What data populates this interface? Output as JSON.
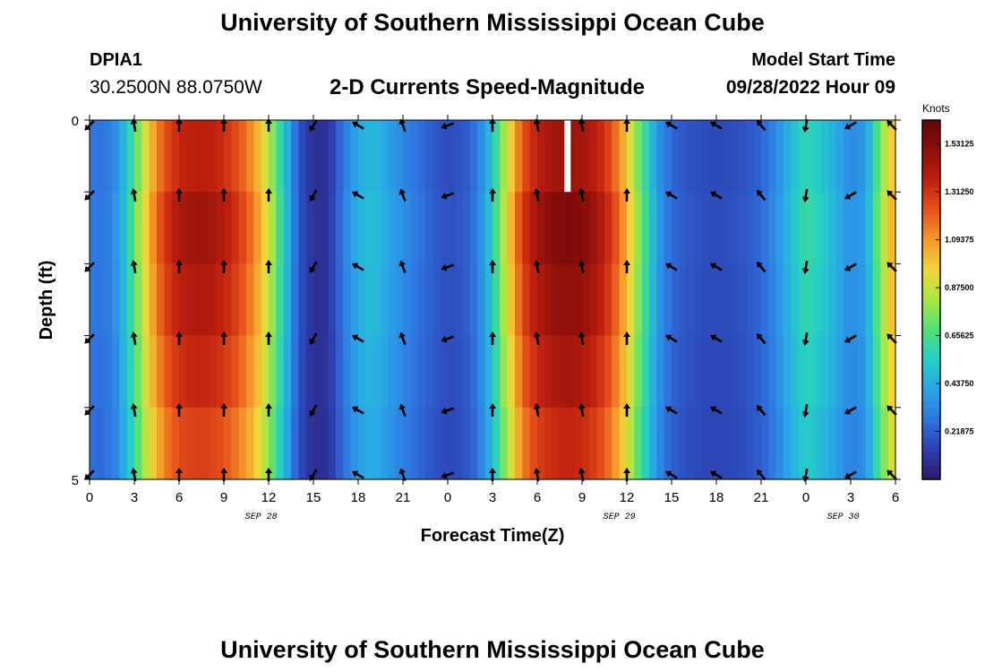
{
  "header": {
    "title": "University of Southern Mississippi Ocean Cube",
    "station_id": "DPIA1",
    "station_coords": "30.2500N  88.0750W",
    "subtitle": "2-D Currents Speed-Magnitude",
    "model_start_label": "Model Start Time",
    "model_start_value": "09/28/2022 Hour 09"
  },
  "footer": {
    "title": "University of Southern Mississippi Ocean Cube"
  },
  "chart_data": {
    "type": "heatmap",
    "title": "2-D Currents Speed-Magnitude",
    "xlabel": "Forecast Time(Z)",
    "ylabel": "Depth (ft)",
    "x_range_hours": [
      0,
      54
    ],
    "y_range": [
      0,
      5
    ],
    "y_ticks": [
      "0",
      "5"
    ],
    "x_tick_labels": [
      "0",
      "3",
      "6",
      "9",
      "12",
      "15",
      "18",
      "21",
      "0",
      "3",
      "6",
      "9",
      "12",
      "15",
      "18",
      "21",
      "0",
      "3",
      "6"
    ],
    "date_labels": [
      {
        "text": "SEP 28",
        "hour": 11.5
      },
      {
        "text": "SEP 29",
        "hour": 35.5
      },
      {
        "text": "SEP 30",
        "hour": 50.5
      }
    ],
    "colorbar": {
      "label": "Knots",
      "min": 0.0,
      "max": 1.64,
      "ticks": [
        "1.53125",
        "1.31250",
        "1.09375",
        "0.87500",
        "0.65625",
        "0.43750",
        "0.21875"
      ],
      "tick_values": [
        1.53125,
        1.3125,
        1.09375,
        0.875,
        0.65625,
        0.4375,
        0.21875
      ],
      "colors": [
        "#2a1a6b",
        "#2d3fb0",
        "#2f74e0",
        "#2aa5e8",
        "#25cfc6",
        "#4fe07a",
        "#a8e843",
        "#f2d63a",
        "#f59a2a",
        "#e6521a",
        "#c0200e",
        "#8c0e0a",
        "#600808"
      ]
    },
    "speed_by_hour": {
      "hours": [
        0,
        1,
        2,
        3,
        4,
        5,
        6,
        7,
        8,
        9,
        10,
        11,
        12,
        13,
        14,
        15,
        16,
        17,
        18,
        19,
        20,
        21,
        22,
        23,
        24,
        25,
        26,
        27,
        28,
        29,
        30,
        31,
        32,
        33,
        34,
        35,
        36,
        37,
        38,
        39,
        40,
        41,
        42,
        43,
        44,
        45,
        46,
        47,
        48,
        49,
        50,
        51,
        52,
        53,
        54
      ],
      "values": [
        0.3,
        0.28,
        0.4,
        0.7,
        1.05,
        1.3,
        1.42,
        1.46,
        1.45,
        1.4,
        1.3,
        1.15,
        0.9,
        0.55,
        0.2,
        0.08,
        0.1,
        0.3,
        0.45,
        0.5,
        0.42,
        0.35,
        0.28,
        0.22,
        0.18,
        0.2,
        0.3,
        0.55,
        0.95,
        1.3,
        1.45,
        1.52,
        1.55,
        1.52,
        1.45,
        1.3,
        1.05,
        0.7,
        0.4,
        0.25,
        0.2,
        0.18,
        0.17,
        0.18,
        0.2,
        0.25,
        0.35,
        0.5,
        0.62,
        0.55,
        0.45,
        0.35,
        0.4,
        0.8,
        1.1
      ]
    },
    "depth_factor": [
      0.95,
      1.0,
      0.97,
      0.93,
      0.88
    ],
    "arrows": {
      "hours": [
        0,
        3,
        6,
        9,
        12,
        15,
        18,
        21,
        24,
        27,
        30,
        33,
        36,
        39,
        42,
        45,
        48,
        51,
        54
      ],
      "angles_deg": [
        45,
        170,
        180,
        180,
        180,
        30,
        120,
        160,
        70,
        180,
        170,
        170,
        180,
        120,
        120,
        140,
        10,
        60,
        135
      ]
    },
    "missing_cell": {
      "hour": 32,
      "depth_row": 0
    }
  }
}
